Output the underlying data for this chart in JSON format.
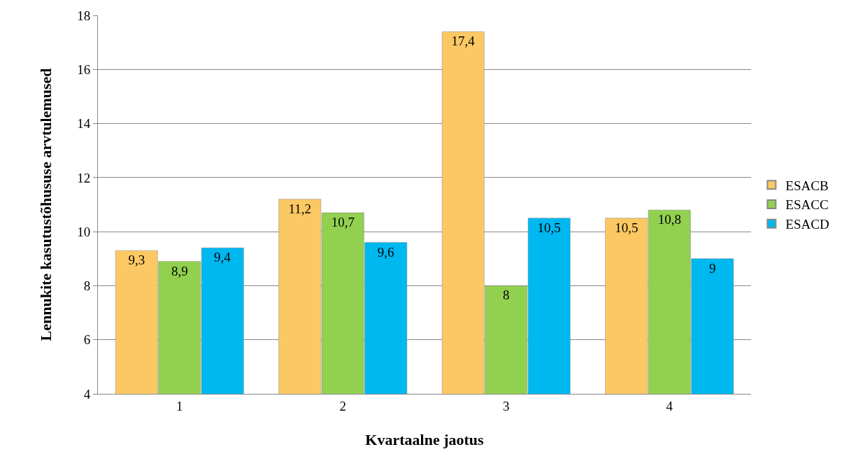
{
  "chart_data": {
    "type": "bar",
    "xlabel": "Kvartaalne jaotus",
    "ylabel": "Lennukite kasutustõhususe arvtulemused",
    "categories": [
      "1",
      "2",
      "3",
      "4"
    ],
    "series": [
      {
        "name": "ESACB",
        "color": "#fcc864",
        "values": [
          9.3,
          11.2,
          17.4,
          10.5
        ],
        "value_labels": [
          "9,3",
          "11,2",
          "17,4",
          "10,5"
        ]
      },
      {
        "name": "ESACC",
        "color": "#92d050",
        "values": [
          8.9,
          10.7,
          8,
          10.8
        ],
        "value_labels": [
          "8,9",
          "10,7",
          "8",
          "10,8"
        ]
      },
      {
        "name": "ESACD",
        "color": "#00b8f0",
        "values": [
          9.4,
          9.6,
          10.5,
          9
        ],
        "value_labels": [
          "9,4",
          "9,6",
          "10,5",
          "9"
        ]
      }
    ],
    "ylim": [
      4,
      18
    ],
    "yticks": [
      4,
      6,
      8,
      10,
      12,
      14,
      16,
      18
    ],
    "grid": "y",
    "legend": "right"
  }
}
